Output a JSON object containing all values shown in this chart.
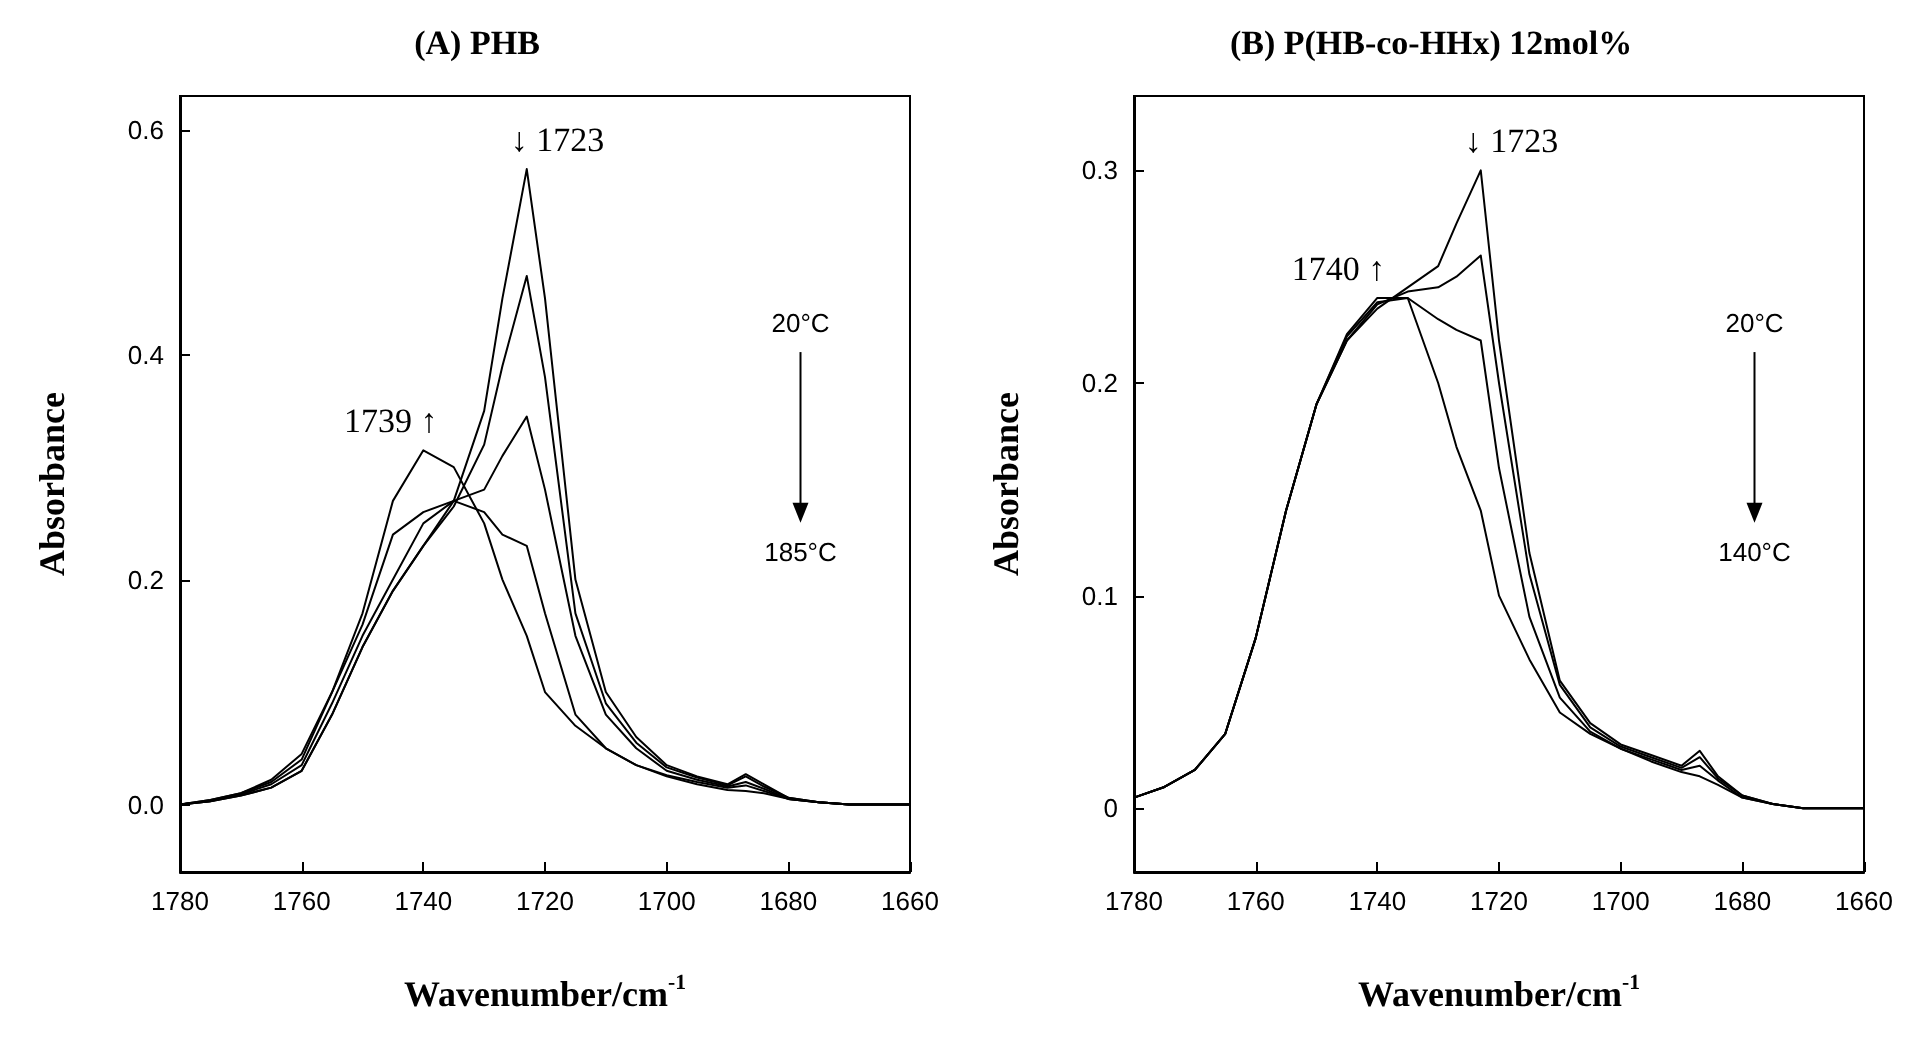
{
  "chart_data": [
    {
      "type": "line",
      "title": "(A) PHB",
      "xlabel": "Wavenumber/cm$^{-1}$",
      "ylabel": "Absorbance",
      "xlim": [
        1780,
        1660
      ],
      "xticks": [
        1780,
        1760,
        1740,
        1720,
        1700,
        1680,
        1660
      ],
      "ylim": [
        -0.06,
        0.63
      ],
      "yticks": [
        {
          "value": 0,
          "label": "0.0"
        },
        {
          "value": 0.2,
          "label": "0.2"
        },
        {
          "value": 0.4,
          "label": "0.4"
        },
        {
          "value": 0.6,
          "label": "0.6"
        }
      ],
      "grid": false,
      "marker": "none",
      "line_style": "solid",
      "x": [
        1780,
        1775,
        1770,
        1765,
        1760,
        1755,
        1750,
        1745,
        1740,
        1735,
        1730,
        1727,
        1723,
        1720,
        1715,
        1710,
        1705,
        1700,
        1695,
        1690,
        1687,
        1684,
        1680,
        1675,
        1670,
        1660
      ],
      "series": [
        {
          "color": "#000000",
          "values": [
            0,
            0.003,
            0.008,
            0.015,
            0.03,
            0.08,
            0.14,
            0.19,
            0.23,
            0.27,
            0.35,
            0.45,
            0.565,
            0.45,
            0.2,
            0.1,
            0.06,
            0.035,
            0.025,
            0.018,
            0.027,
            0.018,
            0.006,
            0.002,
            0,
            0
          ]
        },
        {
          "color": "#000000",
          "values": [
            0,
            0.003,
            0.008,
            0.015,
            0.03,
            0.08,
            0.14,
            0.19,
            0.23,
            0.265,
            0.32,
            0.39,
            0.47,
            0.38,
            0.17,
            0.09,
            0.055,
            0.033,
            0.024,
            0.017,
            0.025,
            0.016,
            0.006,
            0.002,
            0,
            0
          ]
        },
        {
          "color": "#000000",
          "values": [
            0,
            0.003,
            0.009,
            0.018,
            0.035,
            0.09,
            0.15,
            0.2,
            0.25,
            0.27,
            0.28,
            0.31,
            0.345,
            0.28,
            0.15,
            0.08,
            0.05,
            0.03,
            0.022,
            0.016,
            0.02,
            0.014,
            0.005,
            0.002,
            0,
            0
          ]
        },
        {
          "color": "#000000",
          "values": [
            0,
            0.004,
            0.01,
            0.02,
            0.04,
            0.1,
            0.16,
            0.24,
            0.26,
            0.27,
            0.26,
            0.24,
            0.23,
            0.17,
            0.08,
            0.05,
            0.035,
            0.026,
            0.02,
            0.015,
            0.017,
            0.012,
            0.005,
            0.002,
            0,
            0
          ]
        },
        {
          "color": "#000000",
          "values": [
            0,
            0.004,
            0.01,
            0.022,
            0.045,
            0.1,
            0.17,
            0.27,
            0.315,
            0.3,
            0.25,
            0.2,
            0.15,
            0.1,
            0.07,
            0.05,
            0.035,
            0.025,
            0.018,
            0.013,
            0.012,
            0.01,
            0.005,
            0.002,
            0,
            0
          ]
        }
      ],
      "annotations": [
        {
          "text": "↓ 1723",
          "x": 1723,
          "y": 0.565
        },
        {
          "text": "1739 ↑",
          "x": 1739,
          "y": 0.315
        },
        "20°C",
        "185°C"
      ]
    },
    {
      "type": "line",
      "title": "(B) P(HB-co-HHx) 12mol%",
      "xlabel": "Wavenumber/cm$^{-1}$",
      "ylabel": "Absorbance",
      "xlim": [
        1780,
        1660
      ],
      "xticks": [
        1780,
        1760,
        1740,
        1720,
        1700,
        1680,
        1660
      ],
      "ylim": [
        -0.03,
        0.335
      ],
      "yticks": [
        0,
        0.1,
        0.2,
        0.3
      ],
      "grid": false,
      "marker": "none",
      "line_style": "solid",
      "x": [
        1780,
        1775,
        1770,
        1765,
        1760,
        1755,
        1750,
        1745,
        1740,
        1735,
        1730,
        1727,
        1723,
        1720,
        1715,
        1710,
        1705,
        1700,
        1695,
        1690,
        1687,
        1684,
        1680,
        1675,
        1670,
        1660
      ],
      "series": [
        {
          "color": "#000000",
          "values": [
            0.005,
            0.01,
            0.018,
            0.035,
            0.08,
            0.14,
            0.19,
            0.22,
            0.235,
            0.245,
            0.255,
            0.275,
            0.3,
            0.22,
            0.12,
            0.06,
            0.04,
            0.03,
            0.025,
            0.02,
            0.027,
            0.015,
            0.006,
            0.002,
            0,
            0
          ]
        },
        {
          "color": "#000000",
          "values": [
            0.005,
            0.01,
            0.018,
            0.035,
            0.08,
            0.14,
            0.19,
            0.22,
            0.237,
            0.243,
            0.245,
            0.25,
            0.26,
            0.2,
            0.11,
            0.058,
            0.038,
            0.029,
            0.024,
            0.019,
            0.024,
            0.014,
            0.006,
            0.002,
            0,
            0
          ]
        },
        {
          "color": "#000000",
          "values": [
            0.005,
            0.01,
            0.018,
            0.035,
            0.08,
            0.14,
            0.19,
            0.222,
            0.238,
            0.24,
            0.23,
            0.225,
            0.22,
            0.16,
            0.09,
            0.052,
            0.036,
            0.028,
            0.023,
            0.018,
            0.02,
            0.013,
            0.005,
            0.002,
            0,
            0
          ]
        },
        {
          "color": "#000000",
          "values": [
            0.005,
            0.01,
            0.018,
            0.035,
            0.08,
            0.14,
            0.19,
            0.223,
            0.24,
            0.24,
            0.2,
            0.17,
            0.14,
            0.1,
            0.07,
            0.045,
            0.035,
            0.028,
            0.022,
            0.017,
            0.015,
            0.011,
            0.005,
            0.002,
            0,
            0
          ]
        }
      ],
      "annotations": [
        {
          "text": "↓ 1723",
          "x": 1723,
          "y": 0.3
        },
        {
          "text": "1740 ↑",
          "x": 1740,
          "y": 0.24
        },
        "20°C",
        "140°C"
      ]
    }
  ]
}
